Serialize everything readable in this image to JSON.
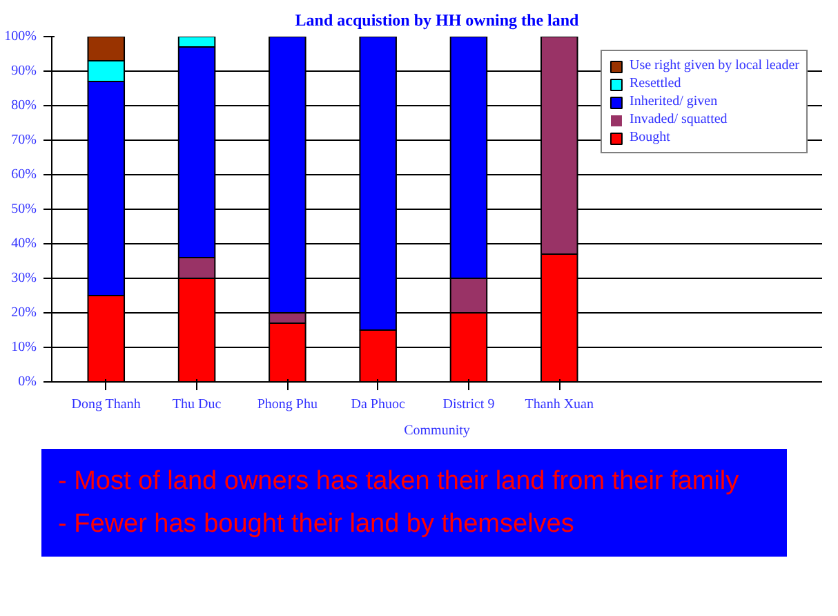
{
  "chart_data": {
    "type": "bar",
    "title": "Land acquistion by HH owning the land",
    "xlabel": "Community",
    "categories": [
      "Dong Thanh",
      "Thu Duc",
      "Phong Phu",
      "Da Phuoc",
      "District 9",
      "Thanh Xuan"
    ],
    "stacked": true,
    "series": [
      {
        "name": "Bought",
        "color": "#ff0000",
        "values": [
          25,
          30,
          17,
          15,
          20,
          37
        ]
      },
      {
        "name": "Invaded/ squatted",
        "color": "#993366",
        "values": [
          0,
          6,
          3,
          0,
          10,
          63
        ]
      },
      {
        "name": "Inherited/ given",
        "color": "#0000ff",
        "values": [
          62,
          61,
          80,
          85,
          70,
          0
        ]
      },
      {
        "name": "Resettled",
        "color": "#00ffff",
        "values": [
          6,
          3,
          0,
          0,
          0,
          0
        ]
      },
      {
        "name": "Use right given by local leader",
        "color": "#993300",
        "values": [
          7,
          0,
          0,
          0,
          0,
          0
        ]
      }
    ],
    "ylim": [
      0,
      100
    ],
    "yticks": [
      {
        "value": 0,
        "label": "0%"
      },
      {
        "value": 10,
        "label": "10%"
      },
      {
        "value": 20,
        "label": "20%"
      },
      {
        "value": 30,
        "label": "30%"
      },
      {
        "value": 40,
        "label": "40%"
      },
      {
        "value": 50,
        "label": "50%"
      },
      {
        "value": 60,
        "label": "60%"
      },
      {
        "value": 70,
        "label": "70%"
      },
      {
        "value": 80,
        "label": "80%"
      },
      {
        "value": 90,
        "label": "90%"
      },
      {
        "value": 100,
        "label": "100%"
      }
    ],
    "grid": "y",
    "legend": "right",
    "annotations": [
      "- Most of land owners has taken their land from their family",
      "- Fewer has bought their land by themselves"
    ]
  }
}
